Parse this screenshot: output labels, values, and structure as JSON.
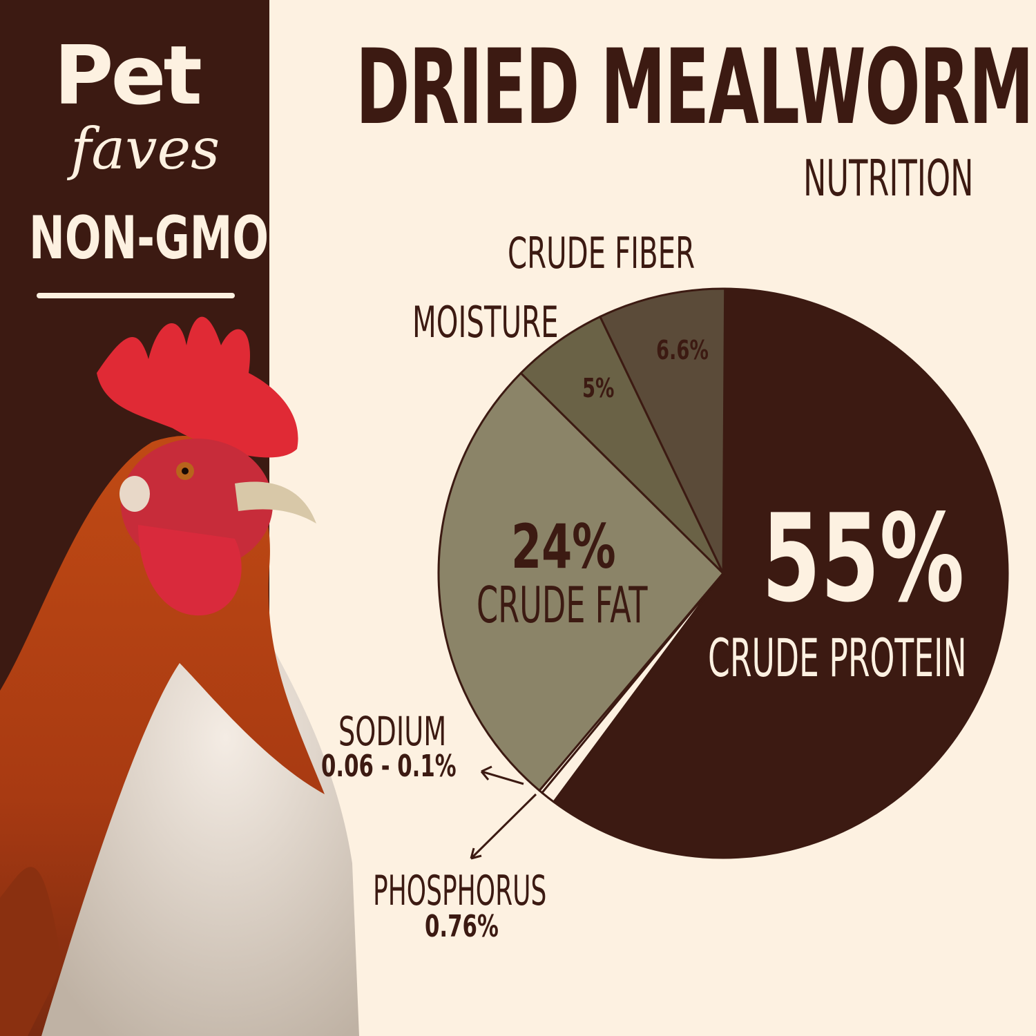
{
  "brand": {
    "logo_text": "Pet faves",
    "badge": "NON-GMO"
  },
  "header": {
    "title": "DRIED MEALWORMS",
    "subtitle": "NUTRITION"
  },
  "colors": {
    "background": "#fdf1e1",
    "dark_brown": "#3c1a12",
    "fat": "#8b8468",
    "moisture": "#6a6246",
    "fiber": "#5b4b39",
    "cream": "#fdf1e1"
  },
  "chart_data": {
    "type": "pie",
    "title": "DRIED MEALWORMS",
    "subtitle": "NUTRITION",
    "slices": [
      {
        "name": "CRUDE PROTEIN",
        "value": 55,
        "label": "55%",
        "color": "#3c1a12"
      },
      {
        "name": "PHOSPHORUS",
        "value": 0.76,
        "label": "0.76%",
        "color": "#fdf1e1"
      },
      {
        "name": "SODIUM",
        "value": 0.08,
        "label": "0.06 - 0.1%",
        "color": "#fdf1e1"
      },
      {
        "name": "CRUDE FAT",
        "value": 24,
        "label": "24%",
        "color": "#8b8468"
      },
      {
        "name": "MOISTURE",
        "value": 5,
        "label": "5%",
        "color": "#6a6246"
      },
      {
        "name": "CRUDE FIBER",
        "value": 6.6,
        "label": "6.6%",
        "color": "#5b4b39"
      }
    ]
  }
}
